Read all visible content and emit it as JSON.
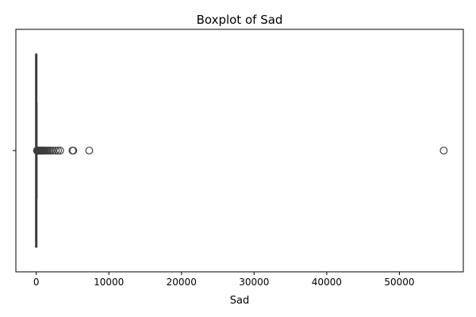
{
  "chart_data": {
    "type": "boxplot",
    "orientation": "horizontal",
    "title": "Boxplot of Sad",
    "xlabel": "Sad",
    "ylabel": "",
    "xlim": [
      -2800,
      58800
    ],
    "xticks": [
      0,
      10000,
      20000,
      30000,
      40000,
      50000
    ],
    "xtick_labels": [
      "0",
      "10000",
      "20000",
      "30000",
      "40000",
      "50000"
    ],
    "grid": false,
    "legend": "none",
    "color": "#3d3d3d",
    "box": {
      "whisker_low": 0,
      "q1": 5,
      "median": 15,
      "q3": 40,
      "whisker_high": 100
    },
    "outliers": [
      110,
      130,
      150,
      180,
      210,
      250,
      300,
      350,
      400,
      450,
      500,
      560,
      620,
      700,
      780,
      860,
      950,
      1050,
      1150,
      1300,
      1450,
      1600,
      1800,
      2000,
      2300,
      2700,
      3000,
      3300,
      5000,
      5100,
      7300,
      56100
    ]
  }
}
